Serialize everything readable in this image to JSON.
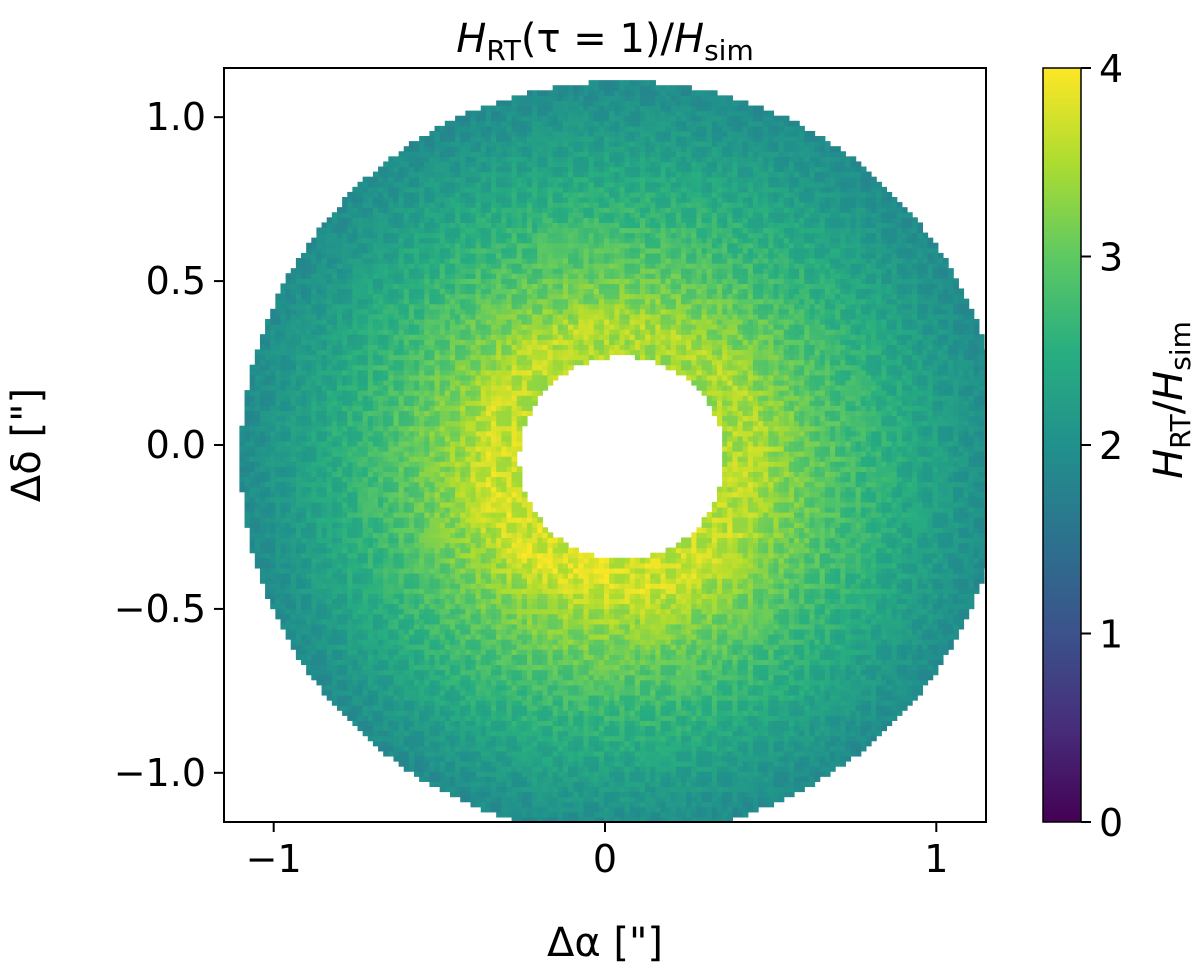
{
  "chart_data": {
    "type": "heatmap",
    "title": {
      "H": "H",
      "sub_rt": "RT",
      "middle": "(τ = 1)/",
      "sub_sim": "sim"
    },
    "xlabel": "Δα [\"]",
    "ylabel": "Δδ [\"]",
    "colorbar_label": {
      "H1": "H",
      "sub_rt": "RT",
      "slash": "/",
      "H2": "H",
      "sub_sim": "sim"
    },
    "xlim": [
      -1.15,
      1.15
    ],
    "ylim": [
      -1.15,
      1.15
    ],
    "xticks": [
      {
        "value": -1,
        "label": "−1"
      },
      {
        "value": 0,
        "label": "0"
      },
      {
        "value": 1,
        "label": "1"
      }
    ],
    "yticks": [
      {
        "value": 1.0,
        "label": "1.0"
      },
      {
        "value": 0.5,
        "label": "0.5"
      },
      {
        "value": 0.0,
        "label": "0.0"
      },
      {
        "value": -0.5,
        "label": "−0.5"
      },
      {
        "value": -1.0,
        "label": "−1.0"
      }
    ],
    "colorbar": {
      "colormap": "viridis",
      "vmin": 0,
      "vmax": 4,
      "ticks": [
        {
          "value": 4,
          "label": "4"
        },
        {
          "value": 3,
          "label": "3"
        },
        {
          "value": 2,
          "label": "2"
        },
        {
          "value": 1,
          "label": "1"
        },
        {
          "value": 0,
          "label": "0"
        }
      ]
    },
    "map": {
      "shape": "annulus",
      "center": [
        0.05,
        -0.04
      ],
      "inner_radius": 0.31,
      "outer_radius": 1.15,
      "peak_value": 3.6,
      "peak_radius": 0.42,
      "edge_value": 1.9,
      "texture": "cellular"
    },
    "grid": false
  }
}
